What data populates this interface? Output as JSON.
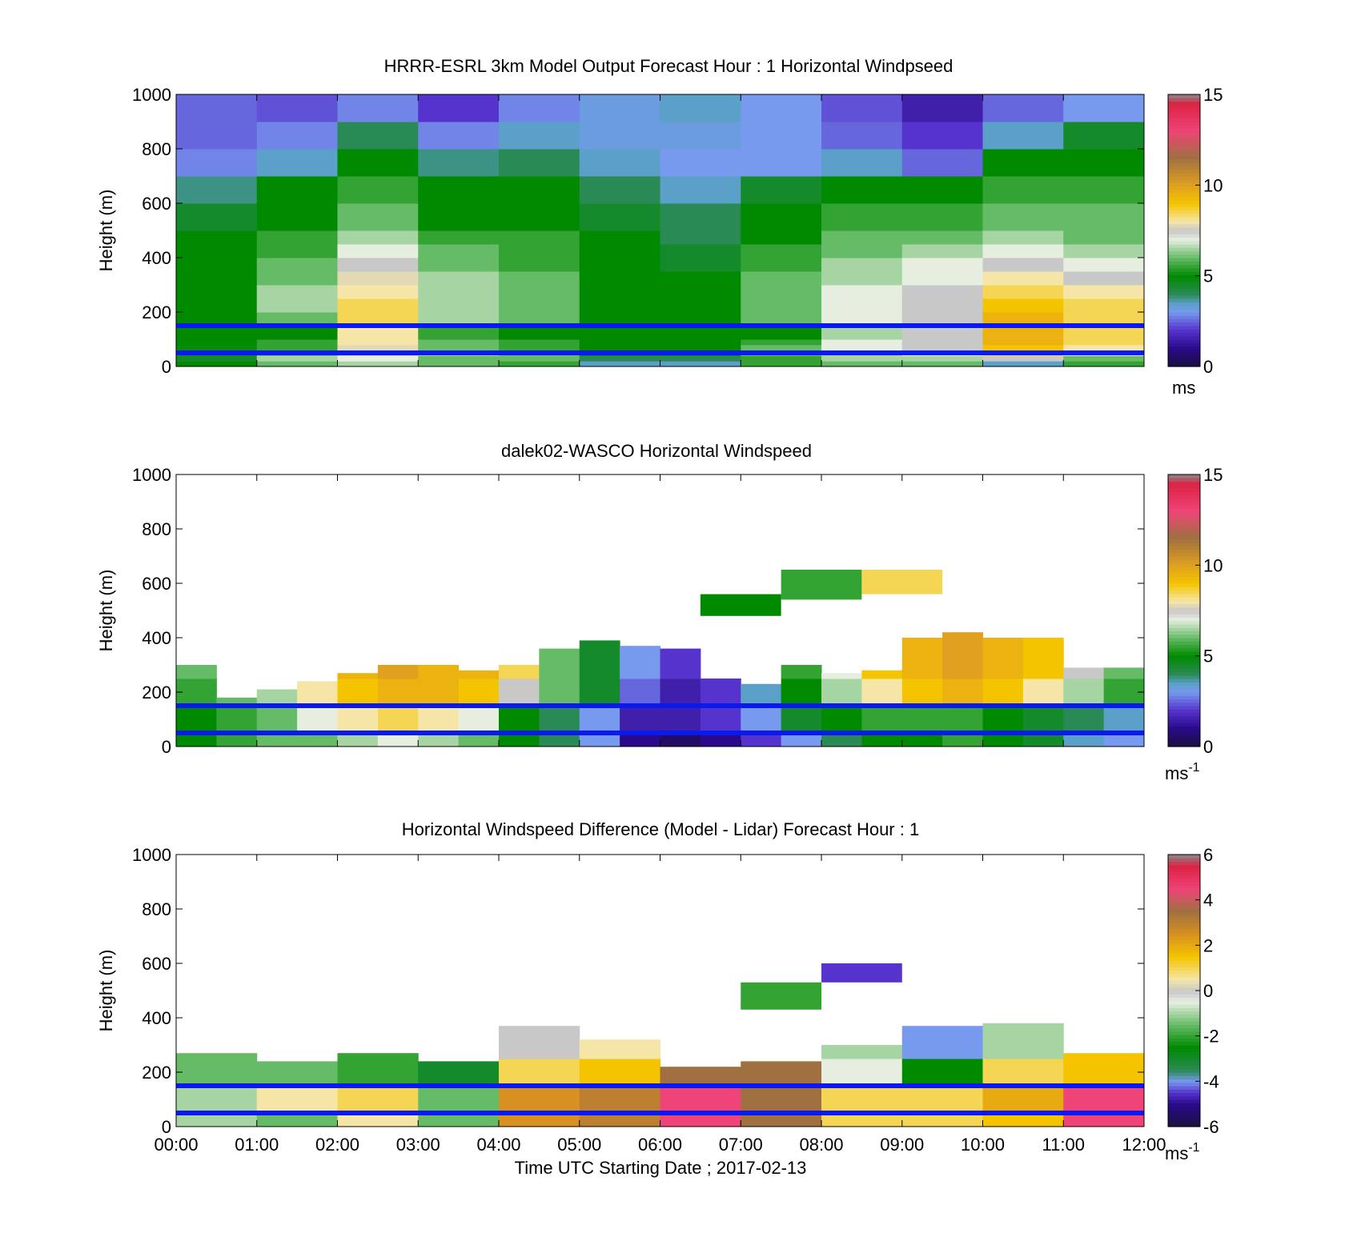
{
  "chart_data": [
    {
      "type": "heatmap",
      "title": "HRRR-ESRL 3km Model Output   Forecast Hour : 1 Horizontal Windpseed",
      "xlabel": "",
      "ylabel": "Height (m)",
      "colorbar_label": "ms",
      "colorbar_ticks": [
        "15",
        "10",
        "5",
        "0"
      ],
      "colorbar_range": [
        0,
        15
      ],
      "ylim": [
        0,
        1000
      ],
      "yticks": [
        "1000",
        "800",
        "600",
        "400",
        "200",
        "0"
      ],
      "xlim": [
        0,
        12
      ],
      "xticks": [],
      "reference_lines_m": [
        150,
        50
      ],
      "time_bins_hours": [
        0,
        1,
        2,
        3,
        4,
        5,
        6,
        7,
        8,
        9,
        10,
        11,
        12
      ],
      "height_bins_m": [
        0,
        20,
        40,
        60,
        80,
        100,
        150,
        200,
        250,
        300,
        350,
        400,
        450,
        500,
        600,
        700,
        800,
        900,
        1000
      ],
      "values": [
        [
          5.0,
          6.0,
          6.5,
          6.0,
          5.5,
          3.5,
          3.5,
          5.5,
          6.0,
          6.0,
          3.5,
          5.5
        ],
        [
          4.5,
          6.5,
          7.0,
          6.0,
          6.0,
          4.0,
          4.0,
          5.5,
          6.5,
          6.5,
          7.5,
          6.0
        ],
        [
          4.8,
          6.0,
          7.5,
          6.5,
          6.0,
          5.0,
          5.0,
          6.0,
          6.5,
          7.0,
          8.5,
          7.0
        ],
        [
          4.8,
          5.5,
          7.8,
          6.0,
          5.5,
          5.0,
          5.0,
          6.0,
          7.0,
          7.5,
          9.0,
          8.0
        ],
        [
          5.0,
          5.5,
          8.0,
          6.0,
          5.5,
          5.0,
          5.0,
          5.5,
          7.0,
          7.5,
          9.5,
          8.5
        ],
        [
          5.0,
          5.0,
          8.0,
          5.5,
          5.0,
          5.0,
          5.0,
          5.0,
          6.5,
          7.5,
          9.5,
          8.5
        ],
        [
          5.0,
          6.0,
          8.5,
          6.5,
          6.0,
          5.0,
          5.0,
          6.0,
          7.0,
          7.5,
          9.5,
          8.5
        ],
        [
          5.0,
          6.5,
          8.5,
          6.5,
          6.0,
          5.0,
          5.0,
          6.0,
          7.0,
          7.5,
          9.0,
          8.5
        ],
        [
          5.0,
          6.5,
          8.0,
          6.5,
          6.0,
          5.0,
          5.0,
          6.0,
          7.0,
          7.5,
          8.5,
          8.0
        ],
        [
          5.0,
          6.0,
          7.8,
          6.5,
          6.0,
          5.0,
          5.0,
          6.0,
          6.5,
          7.0,
          8.0,
          7.5
        ],
        [
          5.0,
          6.0,
          7.5,
          6.0,
          5.5,
          5.0,
          4.5,
          5.5,
          6.5,
          7.0,
          7.5,
          7.0
        ],
        [
          5.0,
          5.5,
          7.0,
          6.0,
          5.5,
          5.0,
          4.5,
          5.5,
          6.0,
          6.5,
          7.0,
          6.5
        ],
        [
          5.0,
          5.5,
          6.5,
          5.5,
          5.5,
          5.0,
          4.0,
          5.0,
          6.0,
          6.0,
          6.5,
          6.0
        ],
        [
          4.5,
          5.0,
          6.0,
          5.0,
          5.0,
          4.5,
          4.0,
          5.0,
          5.5,
          5.5,
          6.0,
          6.0
        ],
        [
          3.8,
          5.0,
          5.5,
          5.0,
          5.0,
          4.0,
          3.5,
          4.5,
          5.0,
          5.0,
          5.5,
          5.5
        ],
        [
          2.8,
          3.5,
          5.0,
          3.8,
          4.0,
          3.5,
          3.0,
          3.0,
          3.5,
          2.5,
          5.0,
          5.0
        ],
        [
          2.5,
          2.8,
          4.0,
          2.8,
          3.5,
          3.2,
          3.2,
          3.0,
          2.5,
          2.0,
          3.5,
          4.5
        ],
        [
          2.5,
          2.3,
          2.8,
          2.0,
          2.8,
          3.2,
          3.5,
          3.0,
          2.3,
          1.5,
          2.5,
          3.0
        ]
      ]
    },
    {
      "type": "heatmap",
      "title": "dalek02-WASCO  Horizontal Windspeed",
      "xlabel": "",
      "ylabel": "Height (m)",
      "colorbar_label": "ms",
      "colorbar_label_superscript": "-1",
      "colorbar_ticks": [
        "15",
        "10",
        "5",
        "0"
      ],
      "colorbar_range": [
        0,
        15
      ],
      "ylim": [
        0,
        1000
      ],
      "yticks": [
        "1000",
        "800",
        "600",
        "400",
        "200",
        "0"
      ],
      "xlim": [
        0,
        12
      ],
      "xticks": [],
      "reference_lines_m": [
        150,
        50
      ],
      "time_bins_hours": [
        0,
        0.5,
        1,
        1.5,
        2,
        2.5,
        3,
        3.5,
        4,
        4.5,
        5,
        5.5,
        6,
        6.5,
        7,
        7.5,
        8,
        8.5,
        9,
        9.5,
        10,
        10.5,
        11,
        11.5
      ],
      "top_heights_m": [
        300,
        180,
        210,
        240,
        270,
        300,
        300,
        280,
        300,
        360,
        390,
        370,
        360,
        250,
        230,
        300,
        270,
        280,
        400,
        420,
        400,
        400,
        290,
        290
      ],
      "layers_m": [
        {
          "from": 0,
          "to": 50,
          "values": [
            5,
            5.5,
            6,
            6,
            6.5,
            7,
            6.5,
            6,
            5,
            4,
            3,
            1,
            0.5,
            1,
            2,
            3,
            4,
            5,
            5,
            5.5,
            5,
            4.5,
            3.5,
            3
          ]
        },
        {
          "from": 50,
          "to": 150,
          "values": [
            5,
            5.5,
            6,
            7,
            8,
            8.5,
            8,
            7,
            5,
            4,
            3,
            1.5,
            1.5,
            2,
            3,
            4.5,
            5,
            5.5,
            5.5,
            5.5,
            5,
            4.5,
            4,
            3.5
          ]
        },
        {
          "from": 150,
          "to": 250,
          "values": [
            5.5,
            6,
            6.5,
            8,
            9,
            9.5,
            9.5,
            9,
            7.5,
            6,
            4.5,
            2.5,
            1.5,
            2,
            3.5,
            5,
            6.5,
            8,
            9,
            9.5,
            9,
            8,
            6.5,
            5.5
          ]
        },
        {
          "from": 250,
          "to": 450,
          "values": [
            6,
            6,
            6.5,
            8,
            9.5,
            10,
            9.5,
            9.5,
            8.5,
            6,
            4.5,
            3,
            2,
            2.5,
            4.5,
            5.5,
            7,
            9,
            9.5,
            10,
            9.5,
            9,
            7.5,
            6
          ]
        }
      ],
      "upper_fragments": [
        {
          "t0": 6.5,
          "t1": 7.5,
          "h0": 480,
          "h1": 560,
          "value": 5
        },
        {
          "t0": 7.5,
          "t1": 8.5,
          "h0": 540,
          "h1": 650,
          "value": 5.5
        },
        {
          "t0": 8.5,
          "t1": 9.5,
          "h0": 560,
          "h1": 650,
          "value": 8.5
        }
      ]
    },
    {
      "type": "heatmap",
      "title": "Horizontal Windspeed Difference (Model - Lidar) Forecast Hour : 1",
      "xlabel": "Time UTC  Starting Date ; 2017-02-13",
      "ylabel": "Height (m)",
      "colorbar_label": "ms",
      "colorbar_label_superscript": "-1",
      "colorbar_ticks": [
        "6",
        "4",
        "2",
        "0",
        "-2",
        "-4",
        "-6"
      ],
      "colorbar_range": [
        -6,
        6
      ],
      "ylim": [
        0,
        1000
      ],
      "yticks": [
        "1000",
        "800",
        "600",
        "400",
        "200",
        "0"
      ],
      "xlim": [
        0,
        12
      ],
      "xticks": [
        "00:00",
        "01:00",
        "02:00",
        "03:00",
        "04:00",
        "05:00",
        "06:00",
        "07:00",
        "08:00",
        "09:00",
        "10:00",
        "11:00",
        "12:00"
      ],
      "reference_lines_m": [
        150,
        50
      ],
      "time_bins_hours": [
        0,
        1,
        2,
        3,
        4,
        5,
        6,
        7,
        8,
        9,
        10,
        11,
        12
      ],
      "top_heights_m": [
        270,
        240,
        270,
        240,
        370,
        320,
        220,
        240,
        300,
        370,
        380,
        270
      ],
      "layers_m": [
        {
          "from": 0,
          "to": 50,
          "values": [
            -1,
            -1.5,
            0.5,
            -1.5,
            2.5,
            3,
            4.5,
            3.5,
            1,
            1,
            1.5,
            4.5
          ]
        },
        {
          "from": 50,
          "to": 150,
          "values": [
            -1,
            0.5,
            1,
            -1.5,
            2.5,
            3,
            4.5,
            3.5,
            1,
            1,
            2,
            4.5
          ]
        },
        {
          "from": 150,
          "to": 250,
          "values": [
            -1.5,
            -1.5,
            -2,
            -3,
            1,
            1.5,
            3.5,
            3.5,
            -0.5,
            -2.5,
            1,
            1.5
          ]
        },
        {
          "from": 250,
          "to": 400,
          "values": [
            -1.5,
            -1.5,
            -2,
            -3,
            0,
            0.5,
            3,
            3.5,
            -1,
            -4,
            -1,
            1.5
          ]
        }
      ],
      "upper_fragments": [
        {
          "t0": 7,
          "t1": 8,
          "h0": 430,
          "h1": 530,
          "value": -2
        },
        {
          "t0": 8,
          "t1": 9,
          "h0": 530,
          "h1": 600,
          "value": -4.5
        }
      ]
    }
  ]
}
